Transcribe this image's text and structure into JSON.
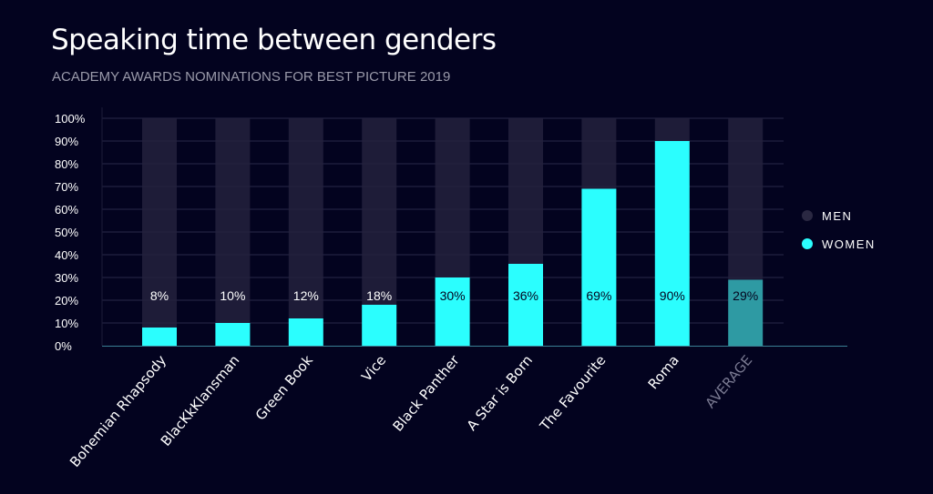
{
  "chart_data": {
    "type": "bar",
    "title": "Speaking time between genders",
    "subtitle": "ACADEMY AWARDS NOMINATIONS FOR BEST PICTURE 2019",
    "categories": [
      "Bohemian Rhapsody",
      "BlacKkKlansman",
      "Green Book",
      "Vice",
      "Black Panther",
      "A Star is Born",
      "The Favourite",
      "Roma",
      "AVERAGE"
    ],
    "series": [
      {
        "name": "MEN",
        "values": [
          92,
          90,
          88,
          82,
          70,
          64,
          31,
          10,
          71
        ],
        "color": "#23213d"
      },
      {
        "name": "WOMEN",
        "values": [
          8,
          10,
          12,
          18,
          30,
          36,
          69,
          90,
          29
        ],
        "color": "#2bfefe",
        "average_color": "#2e9aa3"
      }
    ],
    "data_labels": [
      "8%",
      "10%",
      "12%",
      "18%",
      "30%",
      "36%",
      "69%",
      "90%",
      "29%"
    ],
    "yticks": [
      "0%",
      "10%",
      "20%",
      "30%",
      "40%",
      "50%",
      "60%",
      "70%",
      "80%",
      "90%",
      "100%"
    ],
    "ylim": [
      0,
      100
    ],
    "stacked": true,
    "grid": true,
    "legend_placement": "right"
  }
}
